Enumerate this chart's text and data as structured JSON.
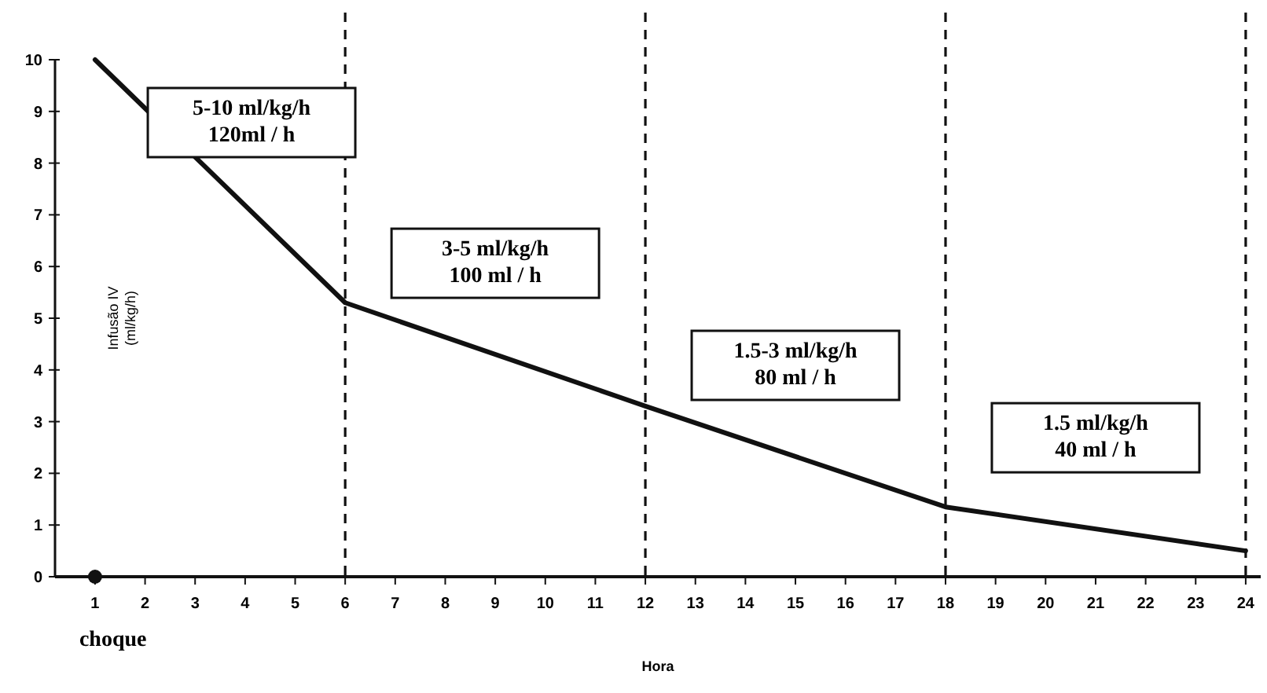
{
  "chart_data": {
    "type": "line",
    "xlabel": "Hora",
    "ylabel": "Infusão IV\n(ml/kg/h)",
    "xlim": [
      0.2,
      24.3
    ],
    "xticks": [
      1,
      2,
      3,
      4,
      5,
      6,
      7,
      8,
      9,
      10,
      11,
      12,
      13,
      14,
      15,
      16,
      17,
      18,
      19,
      20,
      21,
      22,
      23,
      24
    ],
    "ylim": [
      0,
      10
    ],
    "yticks": [
      0,
      1,
      2,
      3,
      4,
      5,
      6,
      7,
      8,
      9,
      10
    ],
    "grid": false,
    "series": [
      {
        "color": "#111111",
        "x": [
          1,
          6,
          12,
          18,
          24
        ],
        "values": [
          10,
          5.3,
          3.3,
          1.35,
          0.5
        ],
        "marker": "none",
        "line_style": "solid"
      },
      {
        "type": "scatter",
        "color": "#111111",
        "x": [
          1
        ],
        "values": [
          0
        ],
        "marker": "circle"
      }
    ],
    "ref_lines": [
      {
        "axis": "x",
        "value": 6,
        "line_style": "dashed",
        "color": "#111111"
      },
      {
        "axis": "x",
        "value": 12,
        "line_style": "dashed",
        "color": "#111111"
      },
      {
        "axis": "x",
        "value": 18,
        "line_style": "dashed",
        "color": "#111111"
      },
      {
        "axis": "x",
        "value": 24,
        "line_style": "dashed",
        "color": "#111111"
      }
    ],
    "annotations": [
      "5-10 ml/kg/h\n120ml / h",
      "3-5 ml/kg/h\n100 ml / h",
      "1.5-3 ml/kg/h\n80 ml / h",
      "1.5 ml/kg/h\n40 ml / h",
      "choque"
    ]
  }
}
